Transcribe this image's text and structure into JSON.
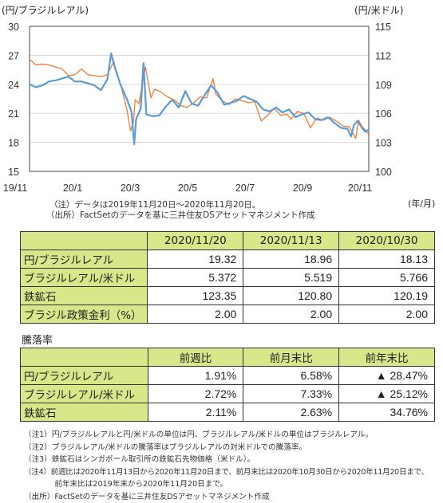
{
  "chart_data": {
    "type": "line",
    "left_axis_title": "(円/ブラジルレアル)",
    "right_axis_title": "(円/米ドル)",
    "x_axis_unit": "(年/月)",
    "x_ticks": [
      "19/11",
      "20/1",
      "20/3",
      "20/5",
      "20/7",
      "20/9",
      "20/11"
    ],
    "y_left": {
      "ticks": [
        30,
        27,
        24,
        21,
        18,
        15
      ],
      "range": [
        15,
        30
      ]
    },
    "y_right": {
      "ticks": [
        115,
        112,
        109,
        106,
        103,
        100
      ],
      "range": [
        100,
        115
      ]
    },
    "x_range": [
      "2019-11-20",
      "2020-11-20"
    ],
    "series": [
      {
        "axis": "left",
        "color": "#5b9bd5",
        "points": [
          [
            "2019-11-20",
            24.0
          ],
          [
            "2019-11-27",
            23.7
          ],
          [
            "2019-12-04",
            23.9
          ],
          [
            "2019-12-11",
            24.3
          ],
          [
            "2019-12-18",
            24.4
          ],
          [
            "2019-12-25",
            24.6
          ],
          [
            "2020-01-01",
            24.8
          ],
          [
            "2020-01-08",
            24.3
          ],
          [
            "2020-01-15",
            24.3
          ],
          [
            "2020-01-22",
            24.1
          ],
          [
            "2020-01-29",
            23.9
          ],
          [
            "2020-02-05",
            23.4
          ],
          [
            "2020-02-12",
            24.5
          ],
          [
            "2020-02-16",
            27.2
          ],
          [
            "2020-02-20",
            25.8
          ],
          [
            "2020-02-26",
            24.0
          ],
          [
            "2020-03-04",
            22.5
          ],
          [
            "2020-03-09",
            21.2
          ],
          [
            "2020-03-12",
            17.8
          ],
          [
            "2020-03-14",
            20.4
          ],
          [
            "2020-03-19",
            21.5
          ],
          [
            "2020-03-22",
            26.2
          ],
          [
            "2020-03-25",
            20.9
          ],
          [
            "2020-04-01",
            20.7
          ],
          [
            "2020-04-08",
            20.8
          ],
          [
            "2020-04-15",
            21.7
          ],
          [
            "2020-04-22",
            22.4
          ],
          [
            "2020-04-29",
            21.6
          ],
          [
            "2020-05-06",
            23.3
          ],
          [
            "2020-05-13",
            22.0
          ],
          [
            "2020-05-20",
            21.8
          ],
          [
            "2020-05-27",
            22.9
          ],
          [
            "2020-06-03",
            23.9
          ],
          [
            "2020-06-10",
            23.1
          ],
          [
            "2020-06-17",
            21.9
          ],
          [
            "2020-06-24",
            22.1
          ],
          [
            "2020-07-01",
            22.3
          ],
          [
            "2020-07-08",
            22.8
          ],
          [
            "2020-07-15",
            22.5
          ],
          [
            "2020-07-22",
            22.2
          ],
          [
            "2020-07-29",
            21.4
          ],
          [
            "2020-08-05",
            21.2
          ],
          [
            "2020-08-12",
            21.6
          ],
          [
            "2020-08-19",
            21.1
          ],
          [
            "2020-08-26",
            21.4
          ],
          [
            "2020-09-02",
            20.6
          ],
          [
            "2020-09-09",
            20.9
          ],
          [
            "2020-09-16",
            21.1
          ],
          [
            "2020-09-23",
            20.4
          ],
          [
            "2020-09-30",
            20.3
          ],
          [
            "2020-10-07",
            20.6
          ],
          [
            "2020-10-14",
            20.0
          ],
          [
            "2020-10-21",
            19.5
          ],
          [
            "2020-10-28",
            19.4
          ],
          [
            "2020-11-01",
            18.6
          ],
          [
            "2020-11-04",
            19.8
          ],
          [
            "2020-11-08",
            20.2
          ],
          [
            "2020-11-12",
            19.6
          ],
          [
            "2020-11-16",
            19.1
          ],
          [
            "2020-11-20",
            19.32
          ]
        ]
      },
      {
        "axis": "right",
        "color": "#ed7d31",
        "points": [
          [
            "2019-11-20",
            111.6
          ],
          [
            "2019-11-27",
            111.0
          ],
          [
            "2019-12-04",
            111.1
          ],
          [
            "2019-12-11",
            111.0
          ],
          [
            "2019-12-18",
            110.8
          ],
          [
            "2019-12-25",
            110.6
          ],
          [
            "2020-01-01",
            109.9
          ],
          [
            "2020-01-08",
            110.0
          ],
          [
            "2020-01-15",
            110.6
          ],
          [
            "2020-01-22",
            110.0
          ],
          [
            "2020-01-29",
            109.9
          ],
          [
            "2020-02-05",
            109.8
          ],
          [
            "2020-02-12",
            110.0
          ],
          [
            "2020-02-19",
            111.4
          ],
          [
            "2020-02-22",
            110.0
          ],
          [
            "2020-02-26",
            109.1
          ],
          [
            "2020-03-04",
            106.4
          ],
          [
            "2020-03-08",
            104.2
          ],
          [
            "2020-03-11",
            105.1
          ],
          [
            "2020-03-13",
            107.4
          ],
          [
            "2020-03-17",
            107.0
          ],
          [
            "2020-03-24",
            110.8
          ],
          [
            "2020-03-30",
            107.6
          ],
          [
            "2020-04-03",
            108.5
          ],
          [
            "2020-04-10",
            108.2
          ],
          [
            "2020-04-17",
            107.7
          ],
          [
            "2020-04-24",
            107.4
          ],
          [
            "2020-05-01",
            106.8
          ],
          [
            "2020-05-08",
            106.6
          ],
          [
            "2020-05-15",
            107.1
          ],
          [
            "2020-05-22",
            107.7
          ],
          [
            "2020-05-29",
            107.6
          ],
          [
            "2020-06-05",
            109.6
          ],
          [
            "2020-06-08",
            108.0
          ],
          [
            "2020-06-15",
            107.3
          ],
          [
            "2020-06-22",
            106.9
          ],
          [
            "2020-06-29",
            107.5
          ],
          [
            "2020-07-06",
            107.3
          ],
          [
            "2020-07-13",
            107.1
          ],
          [
            "2020-07-20",
            107.2
          ],
          [
            "2020-07-27",
            105.2
          ],
          [
            "2020-08-03",
            105.8
          ],
          [
            "2020-08-10",
            106.5
          ],
          [
            "2020-08-17",
            105.8
          ],
          [
            "2020-08-24",
            105.9
          ],
          [
            "2020-08-28",
            105.4
          ],
          [
            "2020-09-04",
            106.2
          ],
          [
            "2020-09-11",
            106.0
          ],
          [
            "2020-09-18",
            104.5
          ],
          [
            "2020-09-25",
            105.5
          ],
          [
            "2020-10-02",
            105.3
          ],
          [
            "2020-10-09",
            105.6
          ],
          [
            "2020-10-16",
            105.2
          ],
          [
            "2020-10-23",
            104.7
          ],
          [
            "2020-10-30",
            104.6
          ],
          [
            "2020-11-06",
            103.4
          ],
          [
            "2020-11-09",
            105.3
          ],
          [
            "2020-11-13",
            104.6
          ],
          [
            "2020-11-17",
            104.2
          ],
          [
            "2020-11-20",
            103.8
          ]
        ]
      }
    ]
  },
  "notes_chart": {
    "line1": "（注）データは2019年11月20日～2020年11月20日。",
    "line2": "（出所）FactSetのデータを基に三井住友DSアセットマネジメント作成"
  },
  "table1": {
    "headers": [
      "",
      "2020/11/20",
      "2020/11/13",
      "2020/10/30"
    ],
    "rows": [
      {
        "label": "円/ブラジルレアル",
        "values": [
          "19.32",
          "18.96",
          "18.13"
        ]
      },
      {
        "label": "ブラジルレアル/米ドル",
        "values": [
          "5.372",
          "5.519",
          "5.766"
        ]
      },
      {
        "label": "鉄鉱石",
        "values": [
          "123.35",
          "120.80",
          "120.19"
        ]
      },
      {
        "label": "ブラジル政策金利（%）",
        "values": [
          "2.00",
          "2.00",
          "2.00"
        ]
      }
    ]
  },
  "table2": {
    "title": "騰落率",
    "headers": [
      "",
      "前週比",
      "前月末比",
      "前年末比"
    ],
    "rows": [
      {
        "label": "円/ブラジルレアル",
        "values": [
          "1.91%",
          "6.58%",
          "▲ 28.47%"
        ]
      },
      {
        "label": "ブラジルレアル/米ドル",
        "values": [
          "2.72%",
          "7.33%",
          "▲ 25.12%"
        ]
      },
      {
        "label": "鉄鉱石",
        "values": [
          "2.11%",
          "2.63%",
          "34.76%"
        ]
      }
    ]
  },
  "footnotes": [
    "（注1）円/ブラジルレアルと円/米ドルの単位は円、ブラジルレアル/米ドルの単位はブラジルレアル。",
    "（注2）ブラジルレアル/米ドルの騰落率はブラジルレアルの対米ドルでの騰落率。",
    "（注3）鉄鉱石はシンガポール取引所の鉄鉱石先物価格（米ドル）。",
    "（注4）前週比は2020年11月13日から2020年11月20日まで、前月末比は2020年10月30日から2020年11月20日まで、",
    "　　　　前年末比は2019年末から2020年11月20日まで。",
    "（出所）FactSetのデータを基に三井住友DSアセットマネジメント作成"
  ]
}
